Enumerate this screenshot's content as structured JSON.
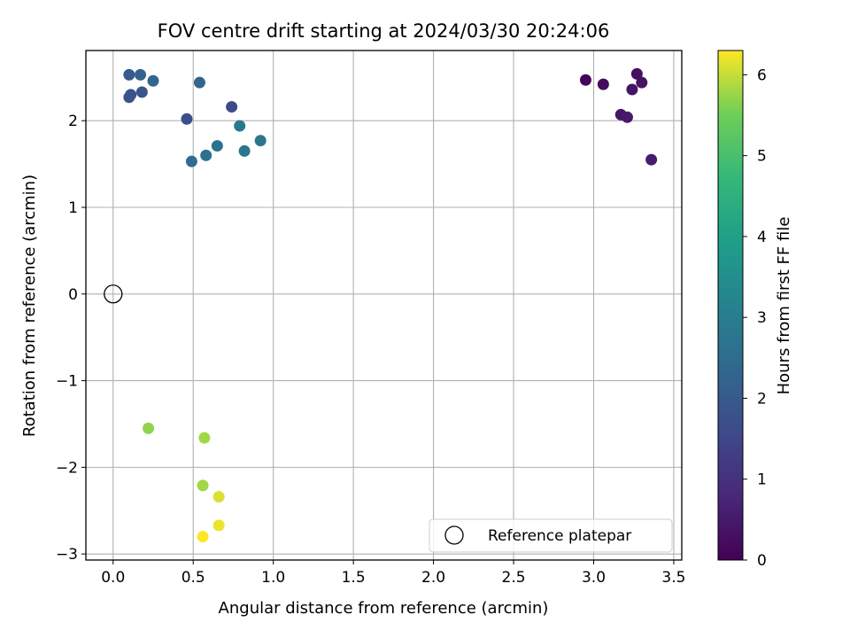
{
  "chart_data": {
    "type": "scatter",
    "title": "FOV centre drift starting at 2024/03/30 20:24:06",
    "xlabel": "Angular distance from reference (arcmin)",
    "ylabel": "Rotation from reference (arcmin)",
    "xlim": [
      -0.17,
      3.55
    ],
    "ylim": [
      -3.07,
      2.81
    ],
    "xticks": [
      0.0,
      0.5,
      1.0,
      1.5,
      2.0,
      2.5,
      3.0,
      3.5
    ],
    "xtick_labels": [
      "0.0",
      "0.5",
      "1.0",
      "1.5",
      "2.0",
      "2.5",
      "3.0",
      "3.5"
    ],
    "yticks": [
      -3,
      -2,
      -1,
      0,
      1,
      2
    ],
    "ytick_labels": [
      "−3",
      "−2",
      "−1",
      "0",
      "1",
      "2"
    ],
    "grid": true,
    "legend": {
      "location": "lower-right",
      "entries": [
        "Reference platepar"
      ]
    },
    "colorbar": {
      "label": "Hours from first FF file",
      "colormap": "viridis",
      "range": [
        0,
        6.3
      ],
      "ticks": [
        0,
        1,
        2,
        3,
        4,
        5,
        6
      ],
      "tick_labels": [
        "0",
        "1",
        "2",
        "3",
        "4",
        "5",
        "6"
      ]
    },
    "reference_point": {
      "name": "Reference platepar",
      "x": 0.0,
      "y": 0.0
    },
    "points": [
      {
        "x": 2.95,
        "y": 2.47,
        "c": 0.1
      },
      {
        "x": 3.06,
        "y": 2.42,
        "c": 0.2
      },
      {
        "x": 3.27,
        "y": 2.54,
        "c": 0.3
      },
      {
        "x": 3.3,
        "y": 2.44,
        "c": 0.35
      },
      {
        "x": 3.24,
        "y": 2.36,
        "c": 0.4
      },
      {
        "x": 3.17,
        "y": 2.07,
        "c": 0.45
      },
      {
        "x": 3.21,
        "y": 2.04,
        "c": 0.5
      },
      {
        "x": 3.36,
        "y": 1.55,
        "c": 0.55
      },
      {
        "x": 0.74,
        "y": 2.16,
        "c": 1.6
      },
      {
        "x": 0.46,
        "y": 2.02,
        "c": 1.7
      },
      {
        "x": 0.1,
        "y": 2.27,
        "c": 1.8
      },
      {
        "x": 0.11,
        "y": 2.3,
        "c": 1.85
      },
      {
        "x": 0.18,
        "y": 2.33,
        "c": 1.9
      },
      {
        "x": 0.1,
        "y": 2.53,
        "c": 2.0
      },
      {
        "x": 0.17,
        "y": 2.53,
        "c": 2.25
      },
      {
        "x": 0.25,
        "y": 2.46,
        "c": 2.3
      },
      {
        "x": 0.54,
        "y": 2.44,
        "c": 2.3
      },
      {
        "x": 0.49,
        "y": 1.53,
        "c": 2.5
      },
      {
        "x": 0.58,
        "y": 1.6,
        "c": 2.6
      },
      {
        "x": 0.65,
        "y": 1.71,
        "c": 2.65
      },
      {
        "x": 0.82,
        "y": 1.65,
        "c": 2.75
      },
      {
        "x": 0.79,
        "y": 1.94,
        "c": 2.85
      },
      {
        "x": 0.92,
        "y": 1.77,
        "c": 2.8
      },
      {
        "x": 0.22,
        "y": -1.55,
        "c": 5.7
      },
      {
        "x": 0.57,
        "y": -1.66,
        "c": 5.8
      },
      {
        "x": 0.56,
        "y": -2.21,
        "c": 5.8
      },
      {
        "x": 0.66,
        "y": -2.34,
        "c": 6.1
      },
      {
        "x": 0.66,
        "y": -2.67,
        "c": 6.2
      },
      {
        "x": 0.56,
        "y": -2.8,
        "c": 6.3
      }
    ]
  }
}
